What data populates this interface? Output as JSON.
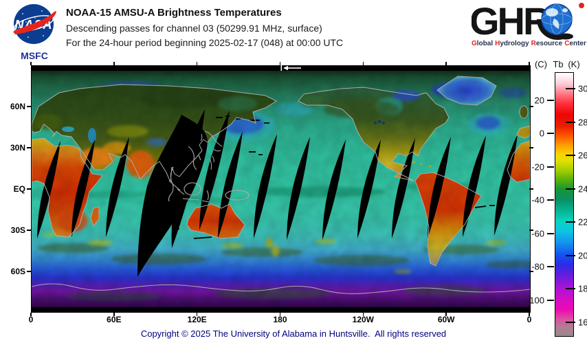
{
  "header": {
    "title": "NOAA-15 AMSU-A Brightness Temperatures",
    "subtitle1": "Descending passes for channel 03 (50299.91 MHz, surface)",
    "subtitle2": "For the 24-hour period beginning 2025-02-17 (048) at 00:00 UTC",
    "nasa": {
      "logo_text": "NASA",
      "center": "MSFC"
    },
    "ghrc": {
      "logo_text": "GHR",
      "tagline_words": [
        {
          "initial": "G",
          "rest": "lobal"
        },
        {
          "initial": "H",
          "rest": "ydrology"
        },
        {
          "initial": "R",
          "rest": "esource"
        },
        {
          "initial": "C",
          "rest": "enter"
        }
      ]
    }
  },
  "map": {
    "lat_ticks": [
      {
        "label": "60N",
        "lat": 60
      },
      {
        "label": "30N",
        "lat": 30
      },
      {
        "label": "EQ",
        "lat": 0
      },
      {
        "label": "30S",
        "lat": -30
      },
      {
        "label": "60S",
        "lat": -60
      }
    ],
    "lon_ticks": [
      {
        "label": "0"
      },
      {
        "label": "60E"
      },
      {
        "label": "120E"
      },
      {
        "label": "180"
      },
      {
        "label": "120W"
      },
      {
        "label": "60W"
      },
      {
        "label": "0"
      }
    ]
  },
  "colorbar": {
    "unit_left": "(C)",
    "quantity": "Tb",
    "unit_right": "(K)",
    "k_max": 310,
    "k_min": 152,
    "kelvin_ticks": [
      300,
      280,
      260,
      240,
      220,
      200,
      180,
      160
    ],
    "celsius_ticks": [
      20,
      0,
      -20,
      -40,
      -60,
      -80,
      -100
    ],
    "gradient": [
      {
        "k": 310,
        "c": "#ffffff"
      },
      {
        "k": 304,
        "c": "#ffd2da"
      },
      {
        "k": 299,
        "c": "#ff8f9a"
      },
      {
        "k": 292,
        "c": "#ff3340"
      },
      {
        "k": 285,
        "c": "#ee0404"
      },
      {
        "k": 278,
        "c": "#e91e00"
      },
      {
        "k": 272,
        "c": "#fc5a00"
      },
      {
        "k": 266,
        "c": "#ffa300"
      },
      {
        "k": 261,
        "c": "#f7d500"
      },
      {
        "k": 257,
        "c": "#dfe000"
      },
      {
        "k": 251,
        "c": "#9fcc00"
      },
      {
        "k": 245,
        "c": "#4fae10"
      },
      {
        "k": 240,
        "c": "#169636"
      },
      {
        "k": 234,
        "c": "#0b8f62"
      },
      {
        "k": 228,
        "c": "#06b18e"
      },
      {
        "k": 221,
        "c": "#08d3c0"
      },
      {
        "k": 215,
        "c": "#0cc6e2"
      },
      {
        "k": 208,
        "c": "#1392ee"
      },
      {
        "k": 201,
        "c": "#1355ee"
      },
      {
        "k": 195,
        "c": "#2c2ae8"
      },
      {
        "k": 188,
        "c": "#6b1cdc"
      },
      {
        "k": 181,
        "c": "#a714d6"
      },
      {
        "k": 174,
        "c": "#d60ec4"
      },
      {
        "k": 168,
        "c": "#ee08b4"
      },
      {
        "k": 162,
        "c": "#d9549e"
      },
      {
        "k": 157,
        "c": "#b27e92"
      },
      {
        "k": 152,
        "c": "#95898d"
      }
    ]
  },
  "footer": {
    "copyright": "Copyright © 2025 The University of Alabama in Huntsville.  All rights reserved"
  },
  "colors": {
    "nasa_blue": "#0b3d91",
    "nasa_red": "#e8251c",
    "msfc_navy": "#22309a",
    "ghrc_black": "#151515",
    "ghrc_red": "#e02521",
    "footer_navy": "#00007e",
    "ocean_teal": "#38d8b4",
    "land_hot_red": "#e23202",
    "swath_black": "#000000"
  }
}
